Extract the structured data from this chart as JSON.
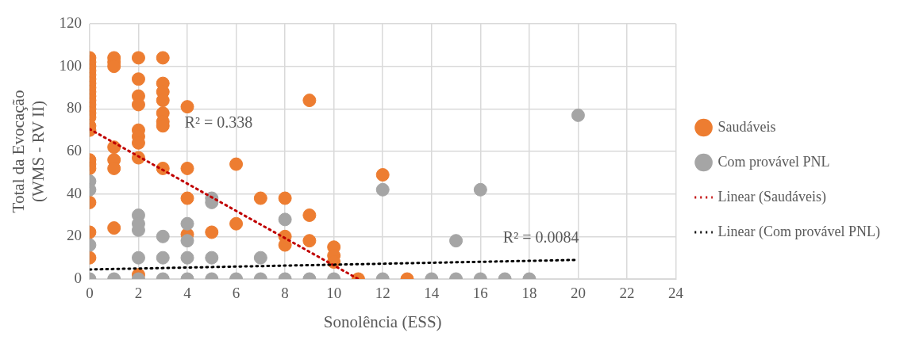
{
  "chart_data": {
    "type": "scatter",
    "xlabel": "Sonolência (ESS)",
    "ylabel": "Total da Evocação\n(WMS - RV II)",
    "xlim": [
      0,
      24
    ],
    "xticks": [
      0,
      2,
      4,
      6,
      8,
      10,
      12,
      14,
      16,
      18,
      20,
      22,
      24
    ],
    "ylim": [
      0,
      120
    ],
    "yticks": [
      0,
      20,
      40,
      60,
      80,
      100,
      120
    ],
    "grid": true,
    "legend": "right",
    "marker": "circle",
    "series": [
      {
        "name": "Saudáveis",
        "color": "#ed7d31",
        "x": [
          0,
          0,
          0,
          0,
          0,
          0,
          0,
          0,
          0,
          0,
          0,
          0,
          0,
          0,
          0,
          0,
          0,
          0,
          0,
          0,
          0,
          0,
          0,
          1,
          1,
          1,
          1,
          1,
          1,
          1,
          2,
          2,
          2,
          2,
          2,
          2,
          2,
          2,
          2,
          3,
          3,
          3,
          3,
          3,
          3,
          3,
          3,
          4,
          4,
          4,
          4,
          5,
          6,
          6,
          7,
          8,
          8,
          8,
          9,
          9,
          9,
          10,
          10,
          10,
          11,
          12,
          13
        ],
        "values": [
          104,
          102,
          100,
          98,
          96,
          94,
          92,
          90,
          88,
          86,
          84,
          82,
          80,
          78,
          76,
          72,
          70,
          56,
          54,
          52,
          36,
          22,
          10,
          104,
          102,
          100,
          62,
          56,
          52,
          24,
          104,
          94,
          86,
          82,
          70,
          67,
          64,
          57,
          2,
          104,
          92,
          88,
          84,
          78,
          74,
          72,
          52,
          81,
          52,
          38,
          21,
          22,
          54,
          26,
          38,
          38,
          20,
          16,
          84,
          30,
          18,
          15,
          11,
          8,
          0,
          49,
          0
        ]
      },
      {
        "name": "Com provável PNL",
        "color": "#a5a5a5",
        "x": [
          0,
          0,
          0,
          0,
          1,
          2,
          2,
          2,
          2,
          2,
          3,
          3,
          3,
          4,
          4,
          4,
          4,
          5,
          5,
          5,
          5,
          6,
          7,
          7,
          8,
          8,
          9,
          10,
          12,
          12,
          14,
          15,
          15,
          16,
          16,
          17,
          18,
          20
        ],
        "values": [
          46,
          42,
          16,
          0,
          0,
          30,
          26,
          23,
          10,
          0,
          20,
          10,
          0,
          26,
          18,
          10,
          0,
          38,
          36,
          10,
          0,
          0,
          10,
          0,
          28,
          0,
          0,
          0,
          42,
          0,
          0,
          18,
          0,
          42,
          0,
          0,
          0,
          77
        ]
      },
      {
        "name": "Linear (Saudáveis)",
        "type": "line",
        "color": "#c00000",
        "line_style": "dotted",
        "marker": "none",
        "x": [
          0,
          11
        ],
        "values": [
          70.5,
          0
        ]
      },
      {
        "name": "Linear (Com provável PNL)",
        "type": "line",
        "color": "#000000",
        "line_style": "dotted",
        "marker": "none",
        "x": [
          0,
          20
        ],
        "values": [
          4.5,
          9
        ]
      }
    ],
    "annotations": [
      "R² = 0.338",
      "R² = 0.0084"
    ]
  }
}
